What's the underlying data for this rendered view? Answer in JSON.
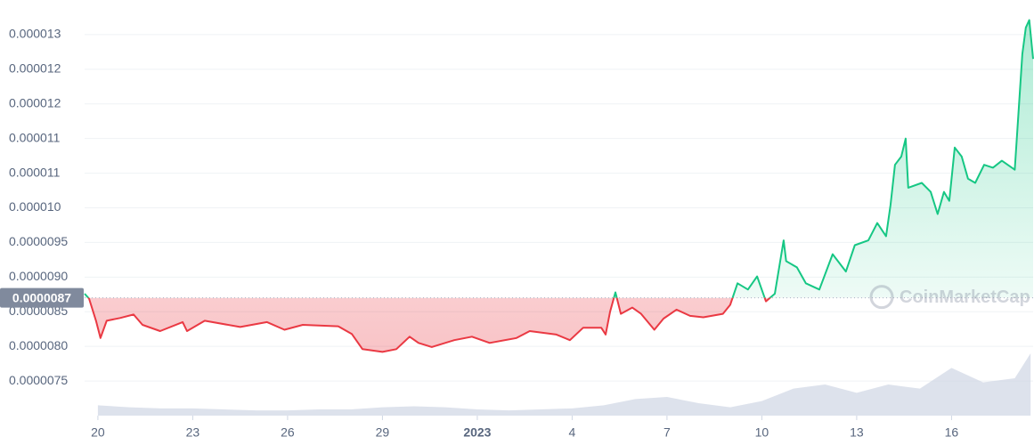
{
  "chart_data": {
    "type": "line",
    "watermark": "CoinMarketCap",
    "up_color": "#16c784",
    "down_color": "#ea3943",
    "volume_color": "#cfd6e4",
    "grid": true,
    "baseline": {
      "value": 8.7e-06,
      "label": "0.0000087"
    },
    "xlim": [
      -0.42,
      29.58
    ],
    "xticks": [
      {
        "value": 0,
        "label": "20"
      },
      {
        "value": 3,
        "label": "23"
      },
      {
        "value": 6,
        "label": "26"
      },
      {
        "value": 9,
        "label": "29"
      },
      {
        "value": 12,
        "label": "2023"
      },
      {
        "value": 15,
        "label": "4"
      },
      {
        "value": 18,
        "label": "7"
      },
      {
        "value": 21,
        "label": "10"
      },
      {
        "value": 24,
        "label": "13"
      },
      {
        "value": 27,
        "label": "16"
      }
    ],
    "ylim": [
      7e-06,
      1.3e-05
    ],
    "yticks": [
      {
        "value": 7.5e-06,
        "label": "0.0000075"
      },
      {
        "value": 8e-06,
        "label": "0.0000080"
      },
      {
        "value": 8.5e-06,
        "label": "0.0000085"
      },
      {
        "value": 9e-06,
        "label": "0.0000090"
      },
      {
        "value": 9.5e-06,
        "label": "0.0000095"
      },
      {
        "value": 1e-05,
        "label": "0.000010"
      },
      {
        "value": 1.05e-05,
        "label": "0.000011"
      },
      {
        "value": 1.1e-05,
        "label": "0.000011"
      },
      {
        "value": 1.15e-05,
        "label": "0.000012"
      },
      {
        "value": 1.2e-05,
        "label": "0.000012"
      },
      {
        "value": 1.25e-05,
        "label": "0.000013"
      }
    ],
    "x": [
      -0.42,
      -0.28,
      -0.06,
      0.08,
      0.28,
      0.7,
      1.13,
      1.41,
      1.97,
      2.68,
      2.82,
      3.38,
      4.5,
      5.35,
      5.9,
      6.48,
      7.6,
      8.03,
      8.37,
      9.0,
      9.44,
      9.86,
      10.14,
      10.56,
      11.27,
      11.83,
      12.39,
      13.24,
      13.66,
      14.5,
      14.93,
      15.35,
      15.92,
      16.06,
      16.2,
      16.37,
      16.54,
      16.9,
      17.18,
      17.6,
      17.89,
      18.3,
      18.73,
      19.15,
      19.77,
      20.0,
      20.23,
      20.56,
      20.85,
      21.13,
      21.41,
      21.69,
      21.77,
      22.11,
      22.39,
      22.82,
      23.24,
      23.66,
      23.94,
      24.37,
      24.65,
      24.93,
      25.07,
      25.21,
      25.41,
      25.55,
      25.63,
      26.06,
      26.34,
      26.56,
      26.76,
      26.93,
      27.1,
      27.32,
      27.52,
      27.75,
      28.03,
      28.31,
      28.59,
      29.0,
      29.24,
      29.35,
      29.46,
      29.58
    ],
    "values": [
      8.76e-06,
      8.69e-06,
      8.37e-06,
      8.12e-06,
      8.37e-06,
      8.41e-06,
      8.46e-06,
      8.31e-06,
      8.22e-06,
      8.35e-06,
      8.22e-06,
      8.37e-06,
      8.28e-06,
      8.35e-06,
      8.24e-06,
      8.31e-06,
      8.29e-06,
      8.18e-06,
      7.96e-06,
      7.92e-06,
      7.96e-06,
      8.14e-06,
      8.05e-06,
      7.99e-06,
      8.09e-06,
      8.14e-06,
      8.05e-06,
      8.12e-06,
      8.22e-06,
      8.17e-06,
      8.09e-06,
      8.27e-06,
      8.27e-06,
      8.17e-06,
      8.5e-06,
      8.78e-06,
      8.47e-06,
      8.56e-06,
      8.47e-06,
      8.24e-06,
      8.4e-06,
      8.53e-06,
      8.44e-06,
      8.42e-06,
      8.47e-06,
      8.6e-06,
      8.91e-06,
      8.82e-06,
      9.01e-06,
      8.65e-06,
      8.76e-06,
      9.53e-06,
      9.23e-06,
      9.14e-06,
      8.91e-06,
      8.82e-06,
      9.33e-06,
      9.08e-06,
      9.46e-06,
      9.53e-06,
      9.78e-06,
      9.59e-06,
      1.004e-05,
      1.062e-05,
      1.074e-05,
      1.1e-05,
      1.029e-05,
      1.036e-05,
      1.023e-05,
      9.91e-06,
      1.023e-05,
      1.01e-05,
      1.087e-05,
      1.074e-05,
      1.042e-05,
      1.036e-05,
      1.062e-05,
      1.058e-05,
      1.068e-05,
      1.055e-05,
      1.222e-05,
      1.26e-05,
      1.271e-05,
      1.215e-05
    ],
    "volume": {
      "x": [
        0,
        1,
        2,
        3,
        4,
        5,
        6,
        7,
        8,
        9,
        10,
        11,
        12,
        13,
        14,
        15,
        16,
        17,
        18,
        19,
        20,
        21,
        22,
        23,
        24,
        25,
        26,
        27,
        28,
        29,
        29.5
      ],
      "values": [
        10,
        8,
        7,
        7,
        6,
        5,
        5,
        6,
        6,
        8,
        9,
        8,
        6,
        5,
        6,
        7,
        10,
        16,
        18,
        12,
        8,
        14,
        26,
        30,
        22,
        30,
        26,
        46,
        32,
        36,
        60
      ]
    }
  }
}
